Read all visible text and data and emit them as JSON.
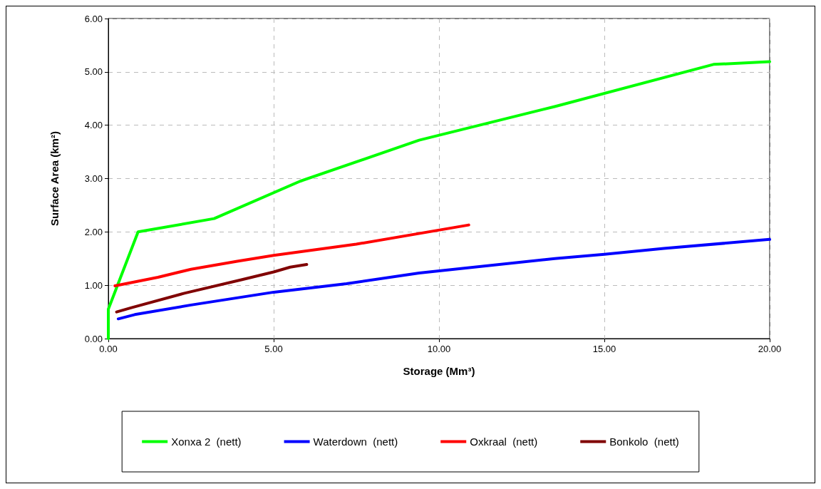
{
  "chart_data": {
    "type": "line",
    "xlabel": "Storage (Mm³)",
    "ylabel": "Surface Area (km²)",
    "xlim": [
      0,
      20
    ],
    "xticks": [
      {
        "value": 0,
        "label": "0.00"
      },
      {
        "value": 5,
        "label": "5.00"
      },
      {
        "value": 10,
        "label": "10.00"
      },
      {
        "value": 15,
        "label": "15.00"
      },
      {
        "value": 20,
        "label": "20.00"
      }
    ],
    "ylim": [
      0,
      6
    ],
    "yticks": [
      {
        "value": 0,
        "label": "0.00"
      },
      {
        "value": 1,
        "label": "1.00"
      },
      {
        "value": 2,
        "label": "2.00"
      },
      {
        "value": 3,
        "label": "3.00"
      },
      {
        "value": 4,
        "label": "4.00"
      },
      {
        "value": 5,
        "label": "5.00"
      },
      {
        "value": 6,
        "label": "6.00"
      }
    ],
    "grid": true,
    "legend": "bottom",
    "marker": "none",
    "line_style": "solid",
    "series": [
      {
        "name": "Xonxa 2  (nett)",
        "color": "#00ff00",
        "x": [
          0,
          0,
          0.9,
          3.2,
          5.8,
          9.4,
          13.5,
          18.3,
          20
        ],
        "values": [
          0,
          0.55,
          2.0,
          2.25,
          2.95,
          3.72,
          4.35,
          5.14,
          5.19
        ]
      },
      {
        "name": "Waterdown  (nett)",
        "color": "#0000ff",
        "x": [
          0.3,
          0.8,
          2.5,
          5,
          7.2,
          9.4,
          13.5,
          15,
          16.8,
          20
        ],
        "values": [
          0.37,
          0.45,
          0.63,
          0.87,
          1.03,
          1.23,
          1.5,
          1.58,
          1.69,
          1.86
        ]
      },
      {
        "name": "Oxkraal  (nett)",
        "color": "#ff0000",
        "x": [
          0.2,
          1.5,
          2.5,
          3.9,
          5.0,
          7.5,
          10.9
        ],
        "values": [
          0.99,
          1.15,
          1.3,
          1.45,
          1.56,
          1.77,
          2.13
        ]
      },
      {
        "name": "Bonkolo  (nett)",
        "color": "#800000",
        "x": [
          0.25,
          0.7,
          2.3,
          4.0,
          5.0,
          5.5,
          6.0
        ],
        "values": [
          0.5,
          0.58,
          0.85,
          1.1,
          1.25,
          1.34,
          1.39
        ]
      }
    ]
  }
}
